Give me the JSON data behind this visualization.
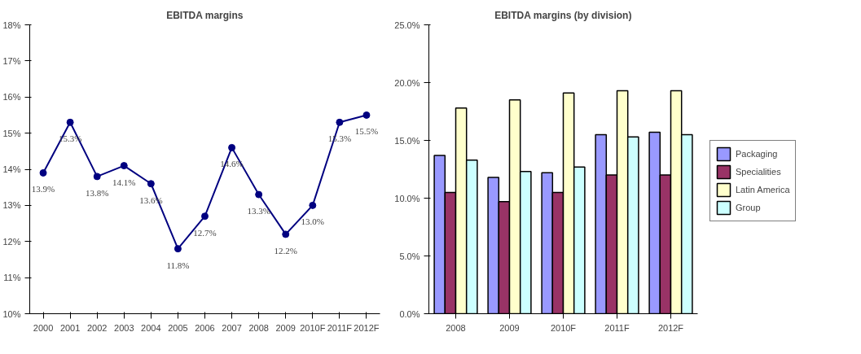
{
  "chart_data": [
    {
      "type": "line",
      "title": "EBITDA margins",
      "categories": [
        "2000",
        "2001",
        "2002",
        "2003",
        "2004",
        "2005",
        "2006",
        "2007",
        "2008",
        "2009",
        "2010F",
        "2011F",
        "2012F"
      ],
      "values": [
        13.9,
        15.3,
        13.8,
        14.1,
        13.6,
        11.8,
        12.7,
        14.6,
        13.3,
        12.2,
        13.0,
        15.3,
        15.5
      ],
      "value_labels": [
        "13.9%",
        "15.3%",
        "13.8%",
        "14.1%",
        "13.6%",
        "11.8%",
        "12.7%",
        "14.6%",
        "13.3%",
        "12.2%",
        "13.0%",
        "15.3%",
        "15.5%"
      ],
      "color": "#000080",
      "marker": "circle",
      "line_style": "solid",
      "grid": false,
      "ylim": [
        10,
        18
      ],
      "yticks": [
        {
          "value": 10,
          "label": "10%"
        },
        {
          "value": 11,
          "label": "11%"
        },
        {
          "value": 12,
          "label": "12%"
        },
        {
          "value": 13,
          "label": "13%"
        },
        {
          "value": 14,
          "label": "14%"
        },
        {
          "value": 15,
          "label": "15%"
        },
        {
          "value": 16,
          "label": "16%"
        },
        {
          "value": 17,
          "label": "17%"
        },
        {
          "value": 18,
          "label": "18%"
        }
      ]
    },
    {
      "type": "bar",
      "title": "EBITDA margins (by division)",
      "categories": [
        "2008",
        "2009",
        "2010F",
        "2011F",
        "2012F"
      ],
      "series": [
        {
          "name": "Packaging",
          "color": "#9999ff",
          "values": [
            13.7,
            11.8,
            12.2,
            15.5,
            15.7
          ]
        },
        {
          "name": "Specialities",
          "color": "#993366",
          "values": [
            10.5,
            9.7,
            10.5,
            12.0,
            12.0
          ]
        },
        {
          "name": "Latin America",
          "color": "#ffffcc",
          "values": [
            17.8,
            18.5,
            19.1,
            19.3,
            19.3
          ]
        },
        {
          "name": "Group",
          "color": "#ccffff",
          "values": [
            13.3,
            12.3,
            12.7,
            15.3,
            15.5
          ]
        }
      ],
      "legend": "right",
      "grid": false,
      "ylim": [
        0,
        25
      ],
      "yticks": [
        {
          "value": 0,
          "label": "0.0%"
        },
        {
          "value": 5,
          "label": "5.0%"
        },
        {
          "value": 10,
          "label": "10.0%"
        },
        {
          "value": 15,
          "label": "15.0%"
        },
        {
          "value": 20,
          "label": "20.0%"
        },
        {
          "value": 25,
          "label": "25.0%"
        }
      ]
    }
  ]
}
